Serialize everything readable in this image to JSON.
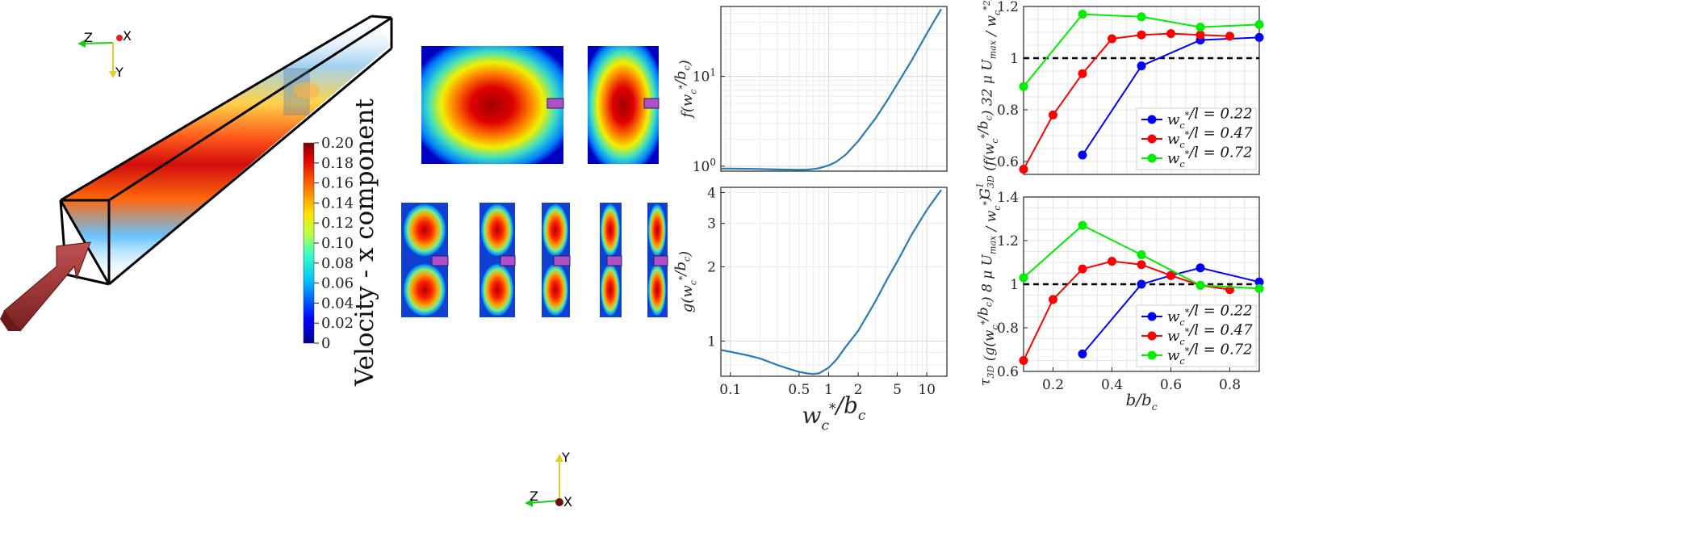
{
  "colorbar": {
    "title": "Velocity - x component",
    "ticks": [
      "0.20",
      "0.18",
      "0.16",
      "0.14",
      "0.12",
      "0.10",
      "0.08",
      "0.06",
      "0.04",
      "0.02",
      "0"
    ]
  },
  "axis_triad_1": {
    "z": "Z",
    "x": "X",
    "y": "Y"
  },
  "axis_triad_2": {
    "z": "Z",
    "x": "X",
    "y": "Y"
  },
  "chart_data": [
    {
      "id": "f",
      "type": "line",
      "xscale": "log",
      "yscale": "log",
      "xlim": [
        0.08,
        16
      ],
      "ylim": [
        0.88,
        60
      ],
      "ylabel": "f(w_c*/b_c)",
      "yticks": [
        {
          "v": 1,
          "t": "10^0"
        },
        {
          "v": 10,
          "t": "10^1"
        }
      ],
      "color": "#2a7ab5",
      "x": [
        0.08,
        0.1,
        0.15,
        0.2,
        0.3,
        0.4,
        0.5,
        0.6,
        0.7,
        0.8,
        1.0,
        1.2,
        1.5,
        2,
        3,
        4,
        5,
        7,
        10,
        14
      ],
      "y": [
        0.94,
        0.94,
        0.935,
        0.93,
        0.92,
        0.915,
        0.91,
        0.915,
        0.93,
        0.95,
        1.02,
        1.12,
        1.35,
        1.9,
        3.4,
        5.5,
        8.2,
        15,
        30,
        56
      ]
    },
    {
      "id": "g",
      "type": "line",
      "xscale": "log",
      "yscale": "log",
      "xlim": [
        0.08,
        16
      ],
      "ylim": [
        0.72,
        4.2
      ],
      "ylabel": "g(w_c*/b_c)",
      "xlabel": "w_c*/b_c",
      "xticks": [
        {
          "v": 0.1,
          "t": "0.1"
        },
        {
          "v": 0.5,
          "t": "0.5"
        },
        {
          "v": 1,
          "t": "1"
        },
        {
          "v": 2,
          "t": "2"
        },
        {
          "v": 5,
          "t": "5"
        },
        {
          "v": 10,
          "t": "10"
        }
      ],
      "yticks": [
        {
          "v": 1,
          "t": "1"
        },
        {
          "v": 2,
          "t": "2"
        },
        {
          "v": 3,
          "t": "3"
        },
        {
          "v": 4,
          "t": "4"
        }
      ],
      "color": "#2a7ab5",
      "x": [
        0.08,
        0.1,
        0.15,
        0.2,
        0.3,
        0.4,
        0.5,
        0.6,
        0.7,
        0.8,
        1.0,
        1.2,
        1.5,
        2,
        3,
        4,
        5,
        7,
        10,
        14
      ],
      "y": [
        0.92,
        0.905,
        0.875,
        0.85,
        0.8,
        0.77,
        0.75,
        0.74,
        0.735,
        0.74,
        0.78,
        0.84,
        0.95,
        1.1,
        1.45,
        1.8,
        2.1,
        2.7,
        3.4,
        4.1
      ]
    },
    {
      "id": "G3D",
      "type": "line",
      "xlim": [
        0.1,
        0.9
      ],
      "ylim": [
        0.55,
        1.2
      ],
      "ylabel": "G_3D (f(w_c*/b_c) 32 μ U_max / w_c*^2)^-1",
      "yticks": [
        {
          "v": 0.6,
          "t": "0.6"
        },
        {
          "v": 0.8,
          "t": "0.8"
        },
        {
          "v": 1,
          "t": "1"
        },
        {
          "v": 1.2,
          "t": "1.2"
        }
      ],
      "reference_line": 1,
      "legend_location": "bottom-right",
      "series": [
        {
          "name": "w_c*/l = 0.22",
          "color": "#0000ff",
          "x": [
            0.3,
            0.5,
            0.7,
            0.9
          ],
          "y": [
            0.625,
            0.97,
            1.07,
            1.08
          ]
        },
        {
          "name": "w_c*/l = 0.47",
          "color": "#ff0000",
          "x": [
            0.1,
            0.2,
            0.3,
            0.4,
            0.5,
            0.6,
            0.7,
            0.8
          ],
          "y": [
            0.57,
            0.78,
            0.94,
            1.075,
            1.09,
            1.095,
            1.09,
            1.085
          ]
        },
        {
          "name": "w_c*/l = 0.72",
          "color": "#00ee00",
          "x": [
            0.1,
            0.3,
            0.5,
            0.7,
            0.9
          ],
          "y": [
            0.89,
            1.17,
            1.16,
            1.12,
            1.13
          ]
        }
      ]
    },
    {
      "id": "tau3D",
      "type": "line",
      "xlim": [
        0.1,
        0.9
      ],
      "ylim": [
        0.6,
        1.4
      ],
      "ylabel": "τ_3D (g(w_c*/b_c) 8 μ U_max / w_c*)^-1",
      "xlabel": "b/b_c",
      "xticks": [
        {
          "v": 0.2,
          "t": "0.2"
        },
        {
          "v": 0.4,
          "t": "0.4"
        },
        {
          "v": 0.6,
          "t": "0.6"
        },
        {
          "v": 0.8,
          "t": "0.8"
        }
      ],
      "yticks": [
        {
          "v": 0.6,
          "t": "0.6"
        },
        {
          "v": 0.8,
          "t": "0.8"
        },
        {
          "v": 1,
          "t": "1"
        },
        {
          "v": 1.2,
          "t": "1.2"
        },
        {
          "v": 1.4,
          "t": "1.4"
        }
      ],
      "reference_line": 1,
      "legend_location": "bottom-right",
      "series": [
        {
          "name": "w_c*/l = 0.22",
          "color": "#0000ff",
          "x": [
            0.3,
            0.5,
            0.6,
            0.7,
            0.9
          ],
          "y": [
            0.68,
            1.0,
            1.04,
            1.075,
            1.01
          ]
        },
        {
          "name": "w_c*/l = 0.47",
          "color": "#ff0000",
          "x": [
            0.1,
            0.2,
            0.3,
            0.4,
            0.5,
            0.6,
            0.7,
            0.8
          ],
          "y": [
            0.65,
            0.93,
            1.07,
            1.105,
            1.09,
            1.04,
            0.995,
            0.975
          ]
        },
        {
          "name": "w_c*/l = 0.72",
          "color": "#00ee00",
          "x": [
            0.1,
            0.3,
            0.5,
            0.7,
            0.9
          ],
          "y": [
            1.03,
            1.27,
            1.135,
            0.995,
            0.98
          ]
        }
      ]
    }
  ]
}
